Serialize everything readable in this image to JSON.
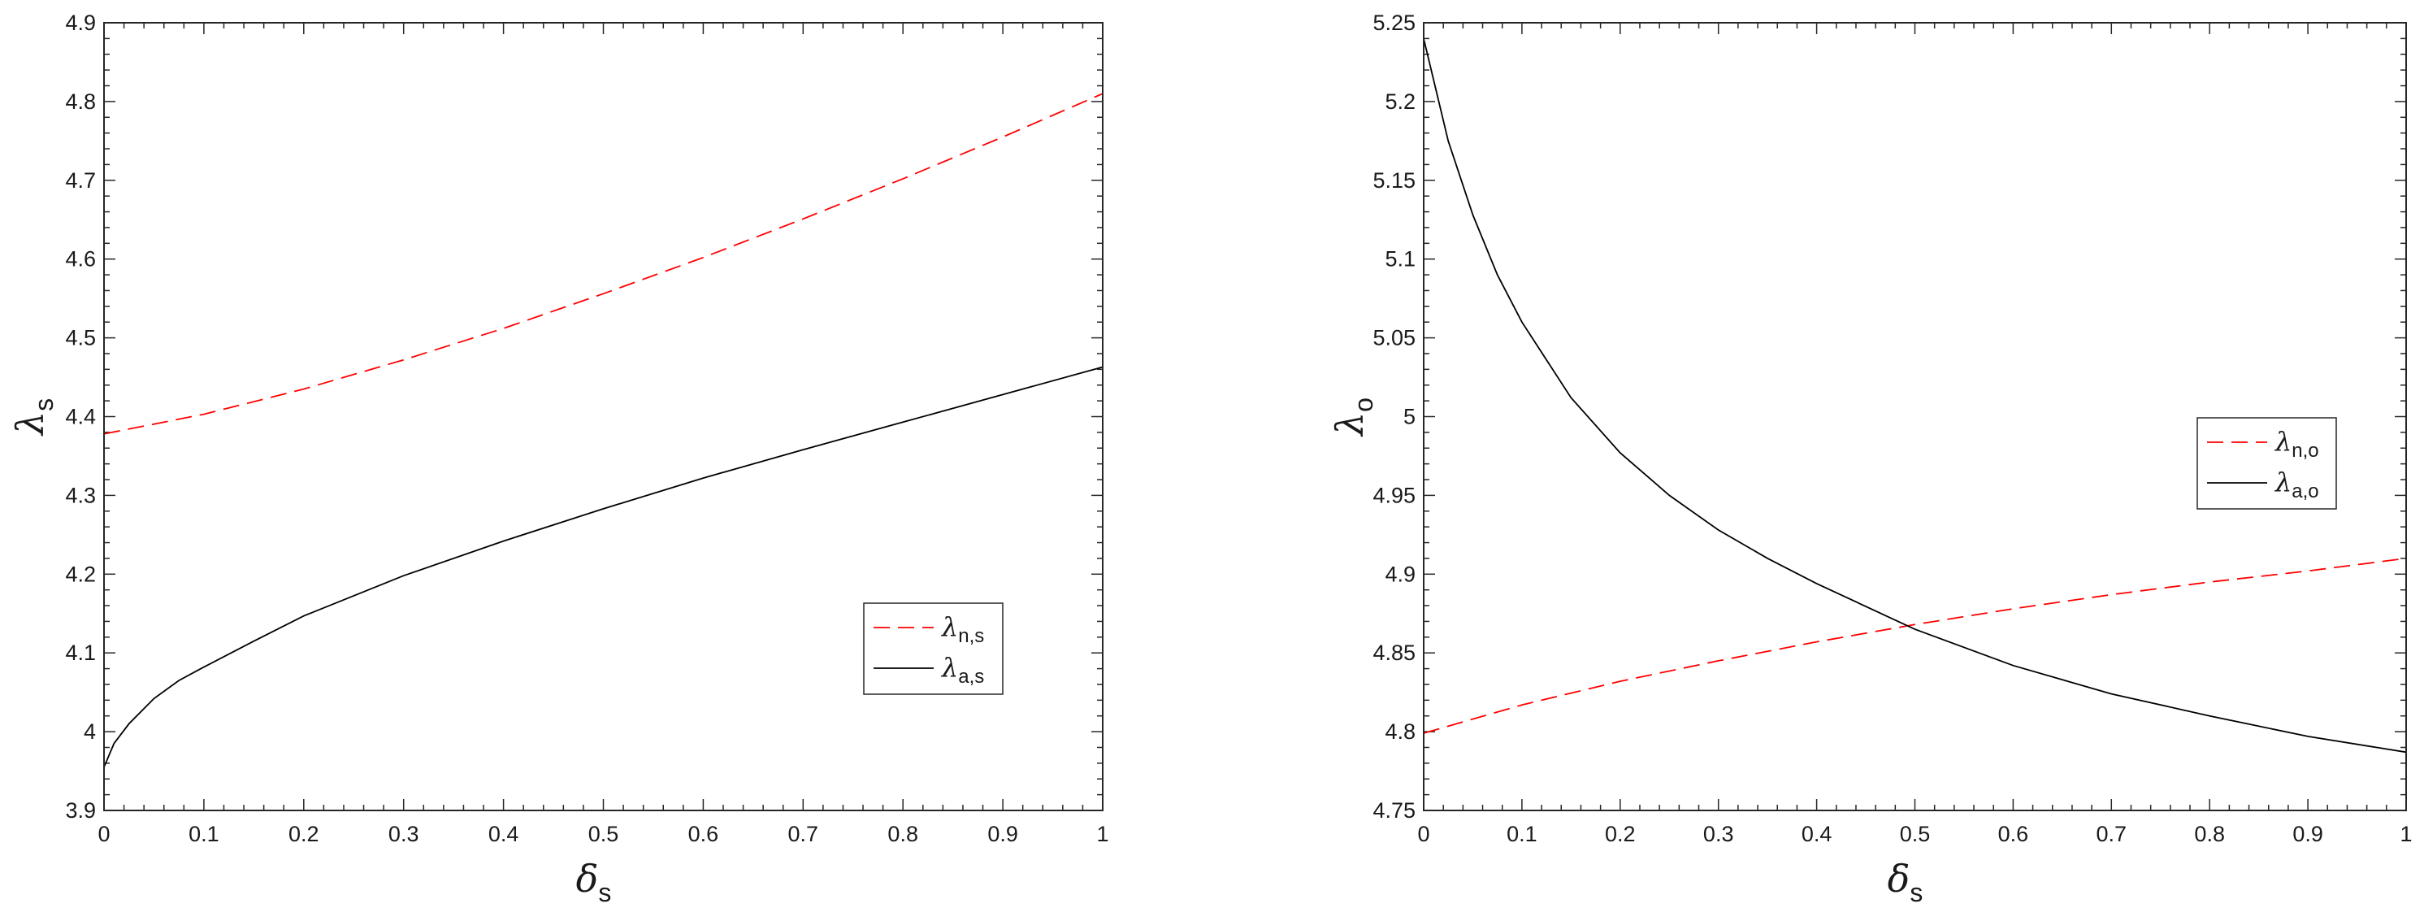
{
  "chart_data": [
    {
      "type": "line",
      "xlabel": {
        "symbol": "δ",
        "sub": "s"
      },
      "ylabel": {
        "symbol": "λ",
        "sub": "s"
      },
      "xlim": [
        0,
        1
      ],
      "ylim": [
        3.9,
        4.9
      ],
      "xticks": [
        "0",
        "0.1",
        "0.2",
        "0.3",
        "0.4",
        "0.5",
        "0.6",
        "0.7",
        "0.8",
        "0.9",
        "1"
      ],
      "yticks": [
        "3.9",
        "4",
        "4.1",
        "4.2",
        "4.3",
        "4.4",
        "4.5",
        "4.6",
        "4.7",
        "4.8",
        "4.9"
      ],
      "legend_position": "lower-right",
      "series": [
        {
          "name": "λn,s",
          "symbol": "λ",
          "sub": "n,s",
          "color": "#ff0000",
          "style": "dashed",
          "x": [
            0,
            0.1,
            0.2,
            0.3,
            0.4,
            0.5,
            0.6,
            0.7,
            0.8,
            0.9,
            1.0
          ],
          "y": [
            4.378,
            4.403,
            4.435,
            4.472,
            4.512,
            4.556,
            4.602,
            4.651,
            4.702,
            4.755,
            4.81
          ]
        },
        {
          "name": "λa,s",
          "symbol": "λ",
          "sub": "a,s",
          "color": "#000000",
          "style": "solid",
          "x": [
            0,
            0.01,
            0.025,
            0.05,
            0.075,
            0.1,
            0.15,
            0.2,
            0.3,
            0.4,
            0.5,
            0.6,
            0.7,
            0.8,
            0.9,
            1.0
          ],
          "y": [
            3.955,
            3.985,
            4.01,
            4.042,
            4.065,
            4.082,
            4.115,
            4.147,
            4.198,
            4.242,
            4.283,
            4.322,
            4.358,
            4.393,
            4.428,
            4.463
          ]
        }
      ]
    },
    {
      "type": "line",
      "xlabel": {
        "symbol": "δ",
        "sub": "s"
      },
      "ylabel": {
        "symbol": "λ",
        "sub": "o"
      },
      "xlim": [
        0,
        1
      ],
      "ylim": [
        4.75,
        5.25
      ],
      "xticks": [
        "0",
        "0.1",
        "0.2",
        "0.3",
        "0.4",
        "0.5",
        "0.6",
        "0.7",
        "0.8",
        "0.9",
        "1"
      ],
      "yticks": [
        "4.75",
        "4.8",
        "4.85",
        "4.9",
        "4.95",
        "5",
        "5.05",
        "5.1",
        "5.15",
        "5.2",
        "5.25"
      ],
      "legend_position": "upper-right",
      "series": [
        {
          "name": "λn,o",
          "symbol": "λ",
          "sub": "n,o",
          "color": "#ff0000",
          "style": "dashed",
          "x": [
            0,
            0.1,
            0.2,
            0.3,
            0.4,
            0.5,
            0.6,
            0.7,
            0.8,
            0.9,
            1.0
          ],
          "y": [
            4.799,
            4.817,
            4.832,
            4.845,
            4.857,
            4.868,
            4.878,
            4.887,
            4.895,
            4.902,
            4.91
          ]
        },
        {
          "name": "λa,o",
          "symbol": "λ",
          "sub": "a,o",
          "color": "#000000",
          "style": "solid",
          "x": [
            0,
            0.025,
            0.05,
            0.075,
            0.1,
            0.15,
            0.2,
            0.25,
            0.3,
            0.35,
            0.4,
            0.5,
            0.6,
            0.7,
            0.8,
            0.9,
            1.0
          ],
          "y": [
            5.24,
            5.175,
            5.128,
            5.09,
            5.06,
            5.012,
            4.977,
            4.95,
            4.928,
            4.91,
            4.894,
            4.865,
            4.842,
            4.824,
            4.81,
            4.797,
            4.787
          ]
        }
      ]
    }
  ]
}
